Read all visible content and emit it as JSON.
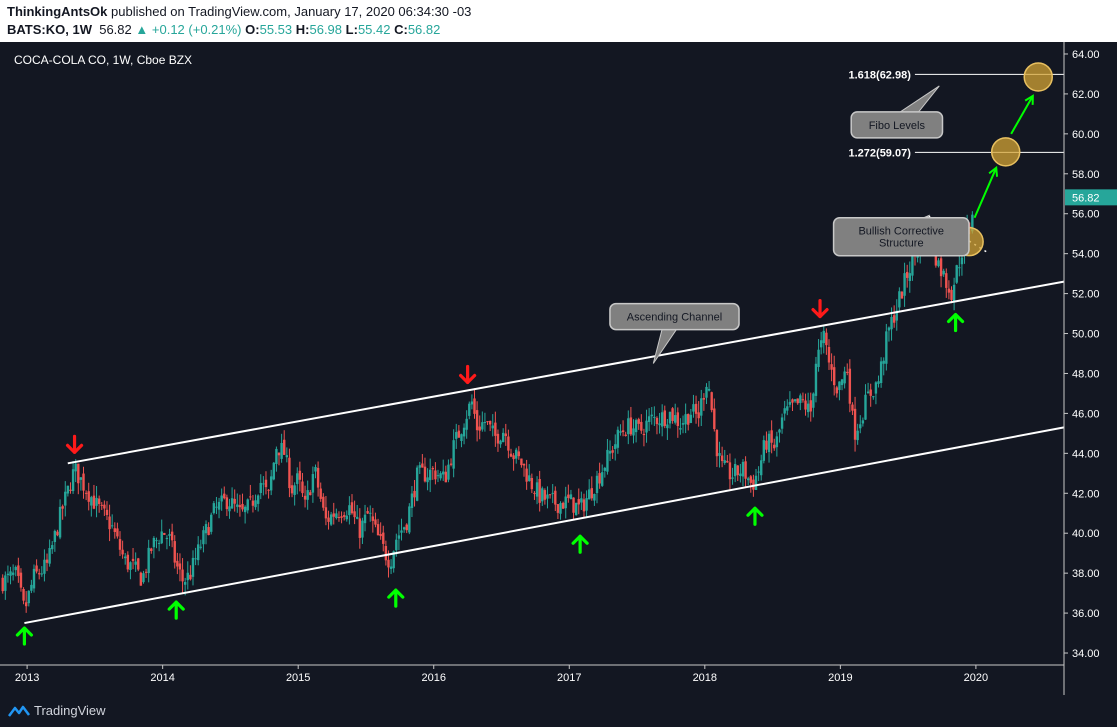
{
  "header": {
    "author": "ThinkingAntsOk",
    "published": "published on TradingView.com, January 17, 2020 06:34:30 -03",
    "symbol": "BATS:KO, 1W",
    "last": "56.82",
    "change": "+0.12 (+0.21%)",
    "o_label": "O:",
    "o": "55.53",
    "h_label": "H:",
    "h": "56.98",
    "l_label": "L:",
    "l": "55.42",
    "c_label": "C:",
    "c": "56.82"
  },
  "footer": {
    "brand": "TradingView"
  },
  "colors": {
    "background": "#131722",
    "up": "#26a69a",
    "down": "#ef5350",
    "arrow_up": "#00ff00",
    "arrow_down": "#ff1a1a",
    "fibo_circle": "#d4a434",
    "price_badge": "#26a69a"
  },
  "chart_data": {
    "type": "candlestick",
    "title": "COCA-COLA CO, 1W, Cboe BZX",
    "x_ticks": [
      "2013",
      "2014",
      "2015",
      "2016",
      "2017",
      "2018",
      "2019",
      "2020"
    ],
    "y_ticks": [
      "34.00",
      "36.00",
      "38.00",
      "40.00",
      "42.00",
      "44.00",
      "46.00",
      "48.00",
      "50.00",
      "52.00",
      "54.00",
      "56.00",
      "58.00",
      "60.00",
      "62.00",
      "64.00"
    ],
    "ylim": [
      33.4,
      64.6
    ],
    "xlim": [
      2012.8,
      2020.65
    ],
    "last_price": "56.82",
    "price_path": [
      [
        2012.82,
        37.6
      ],
      [
        2012.92,
        37.9
      ],
      [
        2012.98,
        36.1
      ],
      [
        2013.05,
        37.8
      ],
      [
        2013.15,
        38.4
      ],
      [
        2013.25,
        41.0
      ],
      [
        2013.35,
        43.2
      ],
      [
        2013.42,
        42.4
      ],
      [
        2013.52,
        41.3
      ],
      [
        2013.62,
        40.4
      ],
      [
        2013.72,
        38.6
      ],
      [
        2013.78,
        38.3
      ],
      [
        2013.85,
        37.7
      ],
      [
        2013.92,
        39.3
      ],
      [
        2014.0,
        40.1
      ],
      [
        2014.05,
        39.7
      ],
      [
        2014.1,
        38.4
      ],
      [
        2014.15,
        37.6
      ],
      [
        2014.2,
        37.9
      ],
      [
        2014.28,
        39.4
      ],
      [
        2014.38,
        41.1
      ],
      [
        2014.48,
        41.7
      ],
      [
        2014.58,
        40.9
      ],
      [
        2014.65,
        41.4
      ],
      [
        2014.72,
        42.6
      ],
      [
        2014.78,
        41.8
      ],
      [
        2014.84,
        44.4
      ],
      [
        2014.9,
        44.0
      ],
      [
        2014.95,
        42.2
      ],
      [
        2015.0,
        42.7
      ],
      [
        2015.05,
        41.3
      ],
      [
        2015.12,
        43.2
      ],
      [
        2015.2,
        40.6
      ],
      [
        2015.28,
        41.1
      ],
      [
        2015.38,
        41.3
      ],
      [
        2015.45,
        40.1
      ],
      [
        2015.52,
        41.0
      ],
      [
        2015.58,
        39.9
      ],
      [
        2015.65,
        38.9
      ],
      [
        2015.68,
        38.6
      ],
      [
        2015.72,
        39.7
      ],
      [
        2015.8,
        40.6
      ],
      [
        2015.88,
        42.9
      ],
      [
        2015.95,
        43.0
      ],
      [
        2016.0,
        43.1
      ],
      [
        2016.08,
        42.7
      ],
      [
        2016.15,
        44.4
      ],
      [
        2016.22,
        45.6
      ],
      [
        2016.28,
        46.6
      ],
      [
        2016.32,
        45.3
      ],
      [
        2016.38,
        45.6
      ],
      [
        2016.45,
        44.8
      ],
      [
        2016.52,
        45.2
      ],
      [
        2016.58,
        44.0
      ],
      [
        2016.65,
        43.5
      ],
      [
        2016.72,
        42.5
      ],
      [
        2016.78,
        41.9
      ],
      [
        2016.85,
        41.6
      ],
      [
        2016.92,
        41.5
      ],
      [
        2017.0,
        41.6
      ],
      [
        2017.08,
        41.2
      ],
      [
        2017.15,
        42.0
      ],
      [
        2017.22,
        42.9
      ],
      [
        2017.3,
        44.0
      ],
      [
        2017.38,
        45.1
      ],
      [
        2017.45,
        45.4
      ],
      [
        2017.52,
        45.1
      ],
      [
        2017.6,
        45.7
      ],
      [
        2017.68,
        45.8
      ],
      [
        2017.75,
        46.0
      ],
      [
        2017.82,
        45.5
      ],
      [
        2017.9,
        46.1
      ],
      [
        2017.95,
        45.8
      ],
      [
        2018.02,
        47.9
      ],
      [
        2018.08,
        44.6
      ],
      [
        2018.12,
        43.3
      ],
      [
        2018.2,
        42.9
      ],
      [
        2018.28,
        43.2
      ],
      [
        2018.35,
        42.4
      ],
      [
        2018.4,
        43.2
      ],
      [
        2018.45,
        44.6
      ],
      [
        2018.52,
        44.3
      ],
      [
        2018.58,
        45.9
      ],
      [
        2018.65,
        46.3
      ],
      [
        2018.72,
        46.6
      ],
      [
        2018.78,
        46.0
      ],
      [
        2018.82,
        48.6
      ],
      [
        2018.88,
        49.8
      ],
      [
        2018.92,
        48.4
      ],
      [
        2018.98,
        47.2
      ],
      [
        2019.05,
        48.3
      ],
      [
        2019.1,
        45.0
      ],
      [
        2019.15,
        45.8
      ],
      [
        2019.2,
        46.8
      ],
      [
        2019.28,
        47.6
      ],
      [
        2019.35,
        50.0
      ],
      [
        2019.42,
        51.4
      ],
      [
        2019.5,
        53.1
      ],
      [
        2019.55,
        54.0
      ],
      [
        2019.62,
        55.0
      ],
      [
        2019.68,
        54.3
      ],
      [
        2019.72,
        53.6
      ],
      [
        2019.78,
        52.6
      ],
      [
        2019.82,
        52.1
      ],
      [
        2019.88,
        53.7
      ],
      [
        2019.92,
        54.8
      ],
      [
        2019.96,
        55.6
      ],
      [
        2019.99,
        56.82
      ]
    ],
    "channel": {
      "upper": {
        "from": [
          2013.3,
          43.5
        ],
        "to": [
          2020.65,
          52.6
        ]
      },
      "lower": {
        "from": [
          2012.98,
          35.5
        ],
        "to": [
          2020.65,
          45.3
        ]
      }
    },
    "fibo_levels": [
      {
        "ratio": "1.618(62.98)",
        "price": 62.98
      },
      {
        "ratio": "1.272(59.07)",
        "price": 59.07
      }
    ],
    "fibo_circles": [
      [
        2019.95,
        54.6
      ],
      [
        2020.22,
        59.1
      ],
      [
        2020.46,
        62.85
      ]
    ],
    "fibo_arrows": [
      {
        "from": [
          2019.99,
          55.8
        ],
        "to": [
          2020.15,
          58.3
        ]
      },
      {
        "from": [
          2020.26,
          60.0
        ],
        "to": [
          2020.42,
          61.9
        ]
      }
    ],
    "dotted_structure": [
      [
        2019.65,
        55.9
      ],
      [
        2020.1,
        54.0
      ]
    ],
    "annotations": [
      {
        "text": "Ascending Channel",
        "at": [
          2017.3,
          51.5
        ],
        "pointer": [
          2017.62,
          48.5
        ]
      },
      {
        "text": "Fibo Levels",
        "at": [
          2019.08,
          61.1
        ],
        "pointer": [
          2019.73,
          62.4
        ]
      },
      {
        "text": "Bullish Corrective Structure",
        "lines": [
          "Bullish Corrective",
          "Structure"
        ],
        "at": [
          2018.95,
          55.8
        ],
        "pointer": [
          2019.65,
          55.9
        ]
      }
    ],
    "down_markers": [
      [
        2013.35,
        44.4
      ],
      [
        2016.25,
        47.9
      ],
      [
        2018.85,
        51.2
      ]
    ],
    "up_markers": [
      [
        2012.98,
        34.9
      ],
      [
        2014.1,
        36.2
      ],
      [
        2015.72,
        36.8
      ],
      [
        2017.08,
        39.5
      ],
      [
        2018.37,
        40.9
      ],
      [
        2019.85,
        50.6
      ]
    ]
  }
}
